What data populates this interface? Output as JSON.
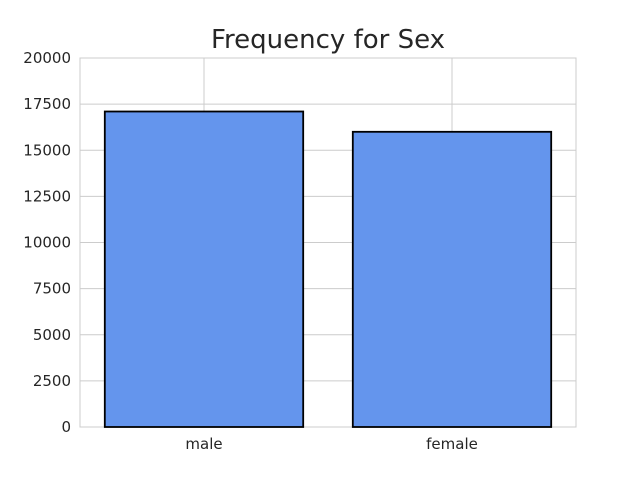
{
  "chart_data": {
    "type": "bar",
    "title": "Frequency for Sex",
    "xlabel": "",
    "ylabel": "",
    "categories": [
      "male",
      "female"
    ],
    "values": [
      17100,
      16000
    ],
    "ylim": [
      0,
      20000
    ],
    "yticks": [
      0,
      2500,
      5000,
      7500,
      10000,
      12500,
      15000,
      17500,
      20000
    ],
    "grid": true,
    "bar_color": "#6495ED",
    "bar_edge_color": "#000000",
    "grid_color": "#cccccc"
  }
}
